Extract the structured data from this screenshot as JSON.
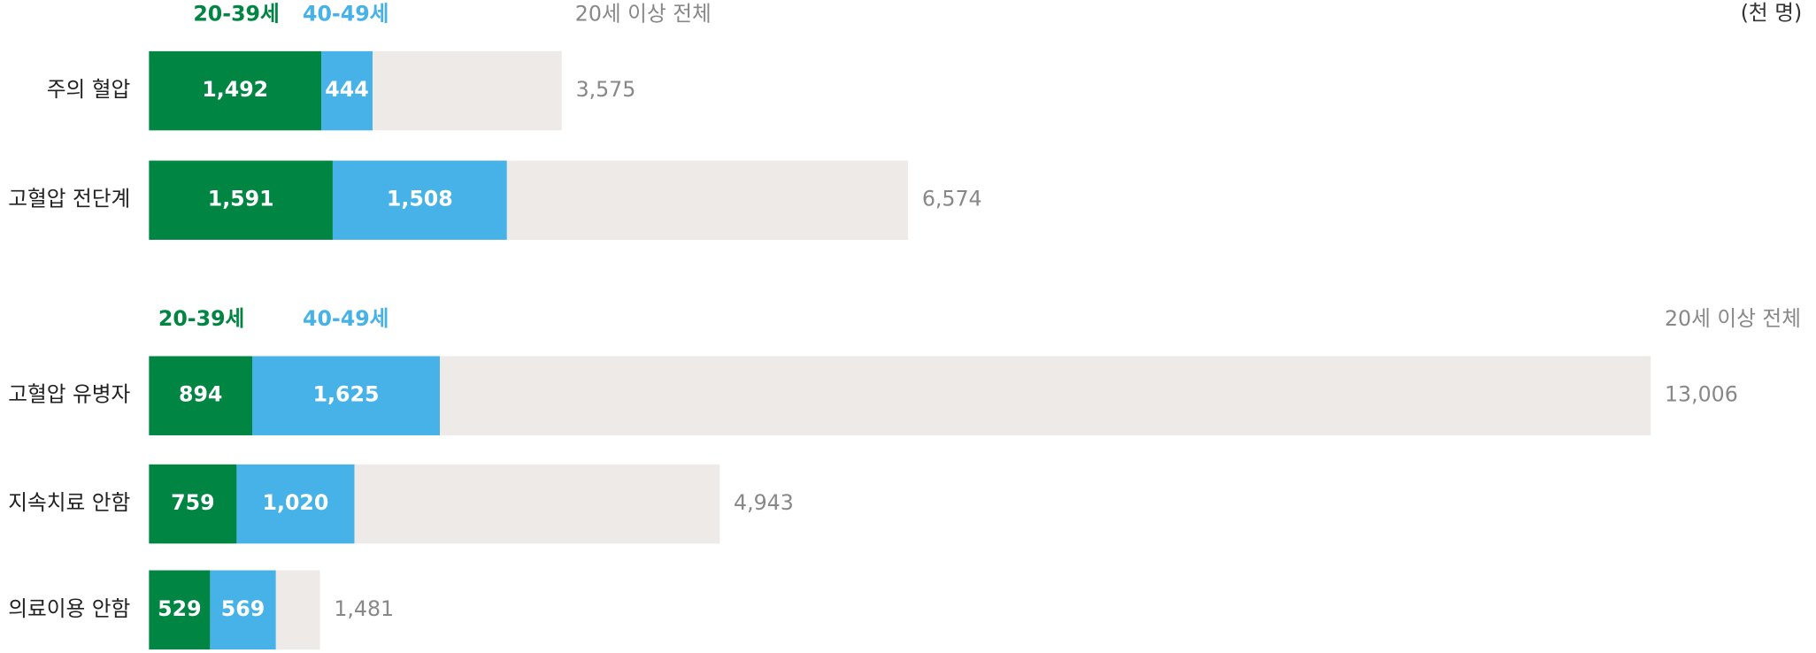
{
  "unit": "(천 명)",
  "chart_data": [
    {
      "type": "bar",
      "stacked": true,
      "categories": [
        "주의 혈압",
        "고혈압 전단계"
      ],
      "series": [
        {
          "name": "20-39세",
          "color": "#008542",
          "values": [
            1492,
            1591
          ],
          "value_labels": [
            "1,492",
            "1,591"
          ]
        },
        {
          "name": "40-49세",
          "color": "#47b2e8",
          "values": [
            444,
            1508
          ],
          "value_labels": [
            "444",
            "1,508"
          ]
        },
        {
          "name": "20세 이상 전체",
          "color": "#eeeae7",
          "values": [
            3575,
            6574
          ],
          "value_labels": [
            "3,575",
            "6,574"
          ]
        }
      ]
    },
    {
      "type": "bar",
      "stacked": true,
      "categories": [
        "고혈압 유병자",
        "지속치료 안함",
        "의료이용 안함"
      ],
      "series": [
        {
          "name": "20-39세",
          "color": "#008542",
          "values": [
            894,
            759,
            529
          ],
          "value_labels": [
            "894",
            "759",
            "529"
          ]
        },
        {
          "name": "40-49세",
          "color": "#47b2e8",
          "values": [
            1625,
            1020,
            569
          ],
          "value_labels": [
            "1,625",
            "1,020",
            "569"
          ]
        },
        {
          "name": "20세 이상 전체",
          "color": "#eeeae7",
          "values": [
            13006,
            4943,
            1481
          ],
          "value_labels": [
            "13,006",
            "4,943",
            "1,481"
          ]
        }
      ]
    }
  ]
}
